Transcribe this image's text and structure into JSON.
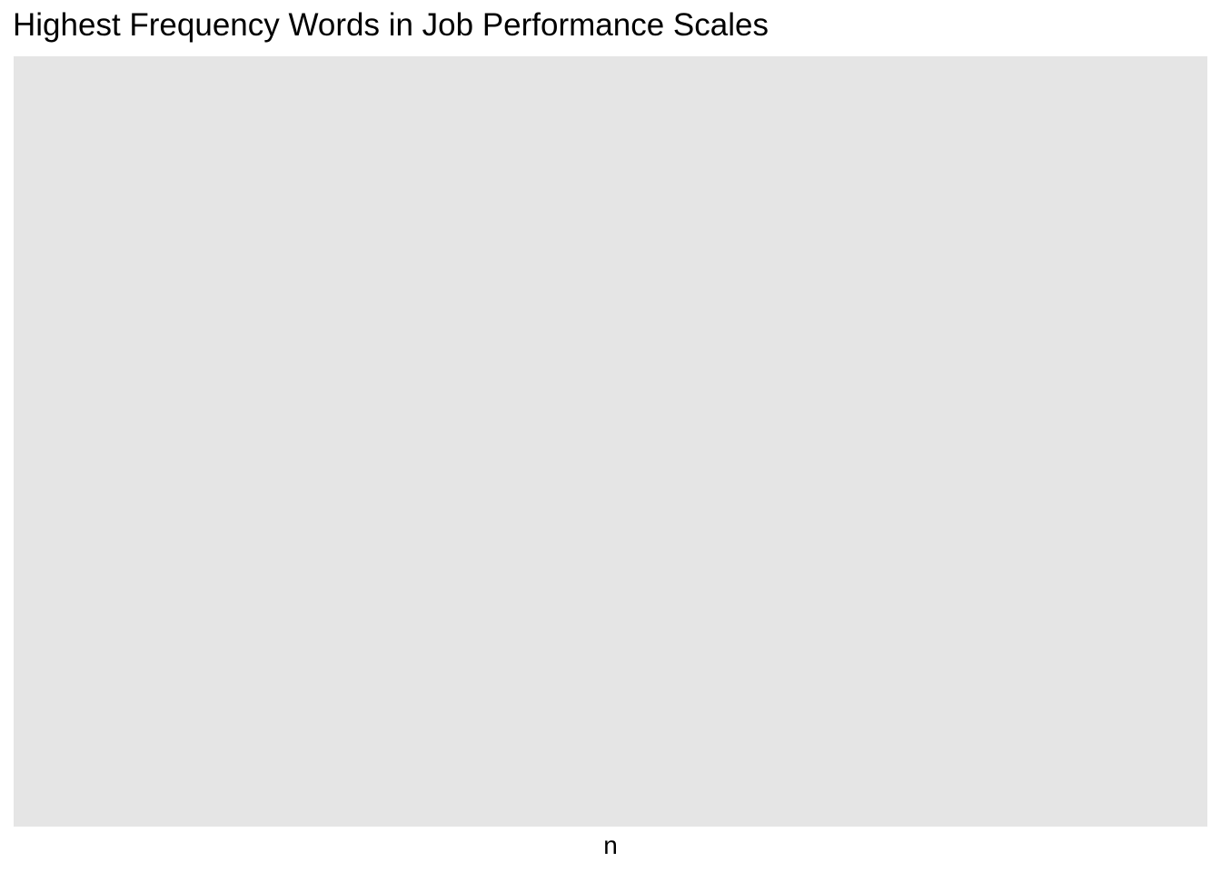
{
  "chart_data": {
    "type": "bar",
    "title": "Highest Frequency Words in Job Performance Scales",
    "xlabel": "n",
    "ylabel": "",
    "categories": [],
    "values": [],
    "grid": false,
    "legend": "none",
    "panel_color": "#E5E5E5"
  }
}
